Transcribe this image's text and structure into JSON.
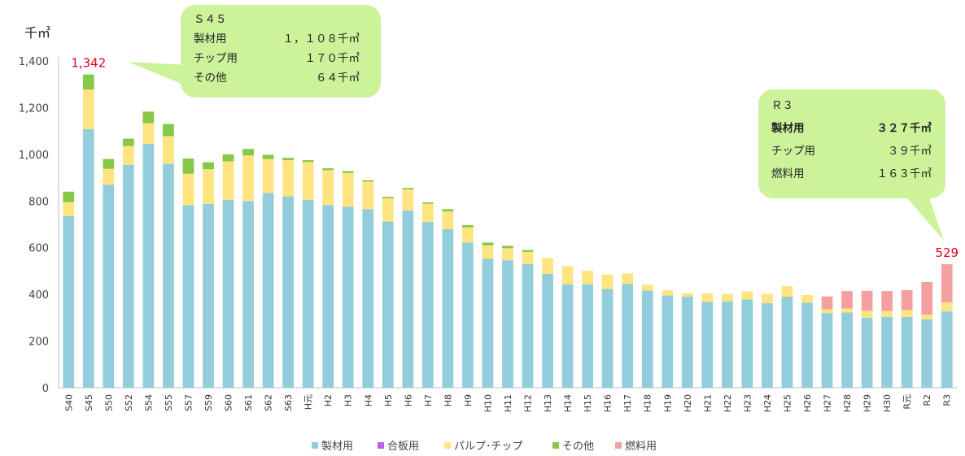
{
  "chart_data": {
    "type": "bar",
    "stacked": true,
    "ylabel": "千㎥",
    "ylim": [
      0,
      1400
    ],
    "yticks": [
      "0",
      "200",
      "400",
      "600",
      "800",
      "1,000",
      "1,200",
      "1,400"
    ],
    "grid": false,
    "legend_position": "bottom",
    "categories": [
      "S40",
      "S45",
      "S50",
      "S52",
      "S54",
      "S55",
      "S57",
      "S59",
      "S60",
      "S61",
      "S62",
      "S63",
      "H元",
      "H2",
      "H3",
      "H4",
      "H5",
      "H6",
      "H7",
      "H8",
      "H9",
      "H10",
      "H11",
      "H12",
      "H13",
      "H14",
      "H15",
      "H16",
      "H17",
      "H18",
      "H19",
      "H20",
      "H21",
      "H22",
      "H23",
      "H24",
      "H25",
      "H26",
      "H27",
      "H28",
      "H29",
      "H30",
      "R元",
      "R2",
      "R3"
    ],
    "series": [
      {
        "name": "製材用",
        "color": "#92cddc",
        "values": [
          735,
          1108,
          870,
          955,
          1045,
          960,
          782,
          788,
          805,
          800,
          835,
          820,
          805,
          782,
          775,
          765,
          712,
          760,
          710,
          680,
          622,
          552,
          546,
          530,
          488,
          443,
          443,
          423,
          445,
          416,
          395,
          390,
          368,
          370,
          378,
          362,
          390,
          365,
          320,
          322,
          300,
          303,
          303,
          293,
          327
        ]
      },
      {
        "name": "合板用",
        "color": "#b266e0",
        "values": [
          0,
          0,
          0,
          0,
          0,
          0,
          0,
          0,
          0,
          0,
          0,
          0,
          0,
          0,
          0,
          0,
          0,
          0,
          0,
          0,
          0,
          0,
          0,
          0,
          0,
          0,
          0,
          0,
          0,
          0,
          0,
          0,
          0,
          0,
          0,
          0,
          0,
          0,
          0,
          0,
          0,
          0,
          0,
          0,
          0
        ]
      },
      {
        "name": "パルプ･チップ",
        "color": "#ffe480",
        "values": [
          60,
          170,
          68,
          80,
          88,
          118,
          135,
          148,
          165,
          195,
          145,
          155,
          162,
          150,
          145,
          118,
          100,
          90,
          78,
          75,
          65,
          58,
          52,
          52,
          68,
          78,
          58,
          62,
          45,
          26,
          22,
          15,
          37,
          32,
          35,
          40,
          45,
          32,
          16,
          17,
          30,
          26,
          30,
          20,
          39
        ]
      },
      {
        "name": "その他",
        "color": "#86c847",
        "values": [
          45,
          64,
          42,
          32,
          50,
          52,
          65,
          30,
          30,
          28,
          18,
          10,
          8,
          8,
          8,
          6,
          6,
          6,
          6,
          10,
          10,
          12,
          10,
          8,
          0,
          0,
          0,
          0,
          0,
          0,
          0,
          0,
          0,
          0,
          0,
          0,
          0,
          0,
          0,
          0,
          0,
          0,
          0,
          0,
          0
        ]
      },
      {
        "name": "燃料用",
        "color": "#f4a0a0",
        "values": [
          0,
          0,
          0,
          0,
          0,
          0,
          0,
          0,
          0,
          0,
          0,
          0,
          0,
          0,
          0,
          0,
          0,
          0,
          0,
          0,
          0,
          0,
          0,
          0,
          0,
          0,
          0,
          0,
          0,
          0,
          0,
          0,
          0,
          0,
          0,
          0,
          0,
          0,
          55,
          75,
          85,
          85,
          85,
          140,
          163
        ]
      }
    ],
    "annotations": [
      {
        "category": "S45",
        "text": "1,342"
      },
      {
        "category": "R3",
        "text": "529"
      }
    ]
  },
  "callouts": {
    "s45": {
      "lines": [
        {
          "label": "Ｓ４５",
          "value": ""
        },
        {
          "label": "製材用",
          "value": "１，１０８千㎥"
        },
        {
          "label": "チップ用",
          "value": "１７０千㎥"
        },
        {
          "label": "その他",
          "value": "６４千㎥"
        }
      ],
      "fill": "#ccf29a"
    },
    "r3": {
      "lines": [
        {
          "label": "Ｒ３",
          "value": ""
        },
        {
          "label": "製材用",
          "value": "３２７千㎥",
          "bold": true
        },
        {
          "label": "チップ用",
          "value": "３９千㎥"
        },
        {
          "label": "燃料用",
          "value": "１６３千㎥"
        }
      ],
      "fill": "#ccf29a"
    }
  }
}
